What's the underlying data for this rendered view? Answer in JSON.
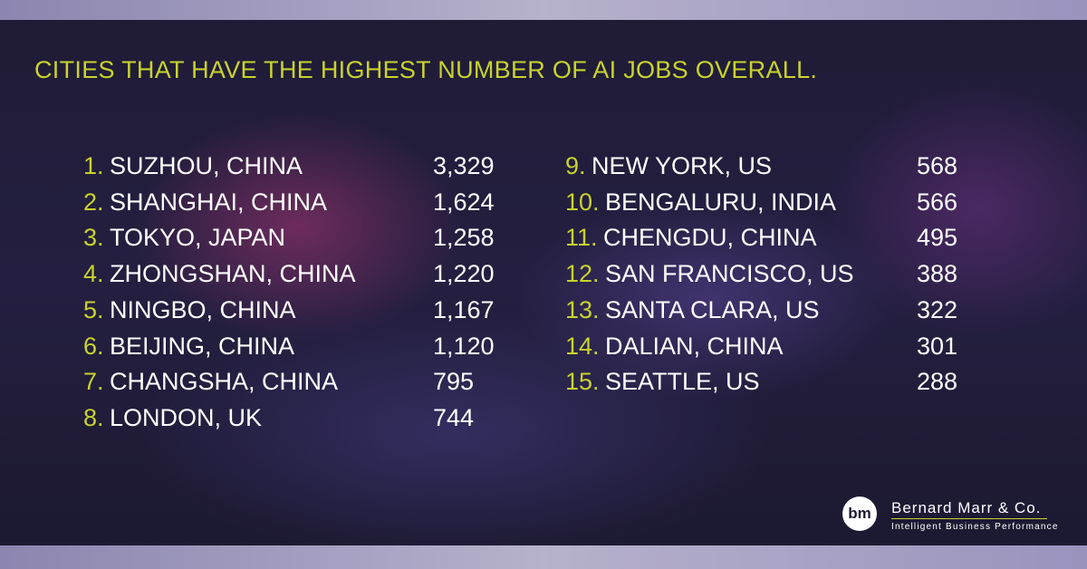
{
  "title": "CITIES THAT HAVE THE HIGHEST NUMBER OF AI JOBS OVERALL.",
  "columns": [
    [
      {
        "rank": "1.",
        "city": "SUZHOU, CHINA",
        "jobs": "3,329"
      },
      {
        "rank": "2.",
        "city": "SHANGHAI, CHINA",
        "jobs": "1,624"
      },
      {
        "rank": "3.",
        "city": "TOKYO, JAPAN",
        "jobs": "1,258"
      },
      {
        "rank": "4.",
        "city": "ZHONGSHAN, CHINA",
        "jobs": "1,220"
      },
      {
        "rank": "5.",
        "city": "NINGBO, CHINA",
        "jobs": "1,167"
      },
      {
        "rank": "6.",
        "city": "BEIJING, CHINA",
        "jobs": "1,120"
      },
      {
        "rank": "7.",
        "city": "CHANGSHA, CHINA",
        "jobs": "795"
      },
      {
        "rank": "8.",
        "city": "LONDON, UK",
        "jobs": "744"
      }
    ],
    [
      {
        "rank": "9.",
        "city": "NEW YORK, US",
        "jobs": "568"
      },
      {
        "rank": "10.",
        "city": "BENGALURU, INDIA",
        "jobs": "566"
      },
      {
        "rank": "11.",
        "city": "CHENGDU, CHINA",
        "jobs": "495"
      },
      {
        "rank": "12.",
        "city": "SAN FRANCISCO, US",
        "jobs": "388"
      },
      {
        "rank": "13.",
        "city": "SANTA CLARA, US",
        "jobs": "322"
      },
      {
        "rank": "14.",
        "city": "DALIAN, CHINA",
        "jobs": "301"
      },
      {
        "rank": "15.",
        "city": "SEATTLE, US",
        "jobs": "288"
      }
    ]
  ],
  "logo": {
    "mark": "bm",
    "name": "Bernard Marr & Co.",
    "tagline": "Intelligent Business Performance"
  }
}
